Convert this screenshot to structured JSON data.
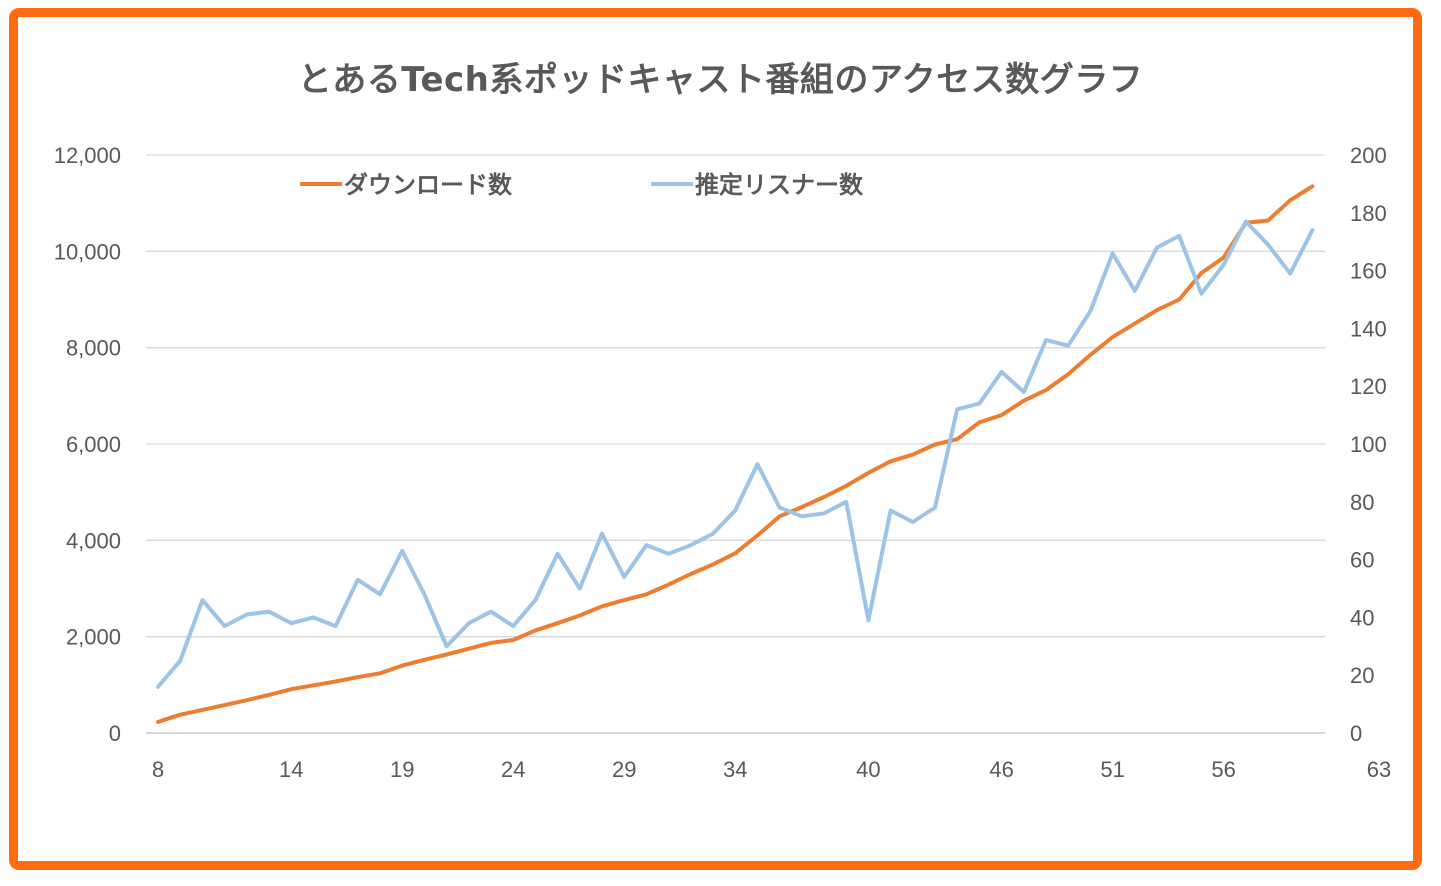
{
  "chart_data": {
    "type": "line",
    "title": "とあるTech系ポッドキャスト番組のアクセス数グラフ",
    "x_tick_labels": [
      "8",
      "14",
      "19",
      "24",
      "29",
      "34",
      "40",
      "46",
      "51",
      "56",
      "63"
    ],
    "x_start": 8,
    "y_left": {
      "ticks": [
        "0",
        "2,000",
        "4,000",
        "6,000",
        "8,000",
        "10,000",
        "12,000"
      ],
      "ylim": [
        0,
        12000
      ]
    },
    "y_right": {
      "ticks": [
        "0",
        "20",
        "40",
        "60",
        "80",
        "100",
        "120",
        "140",
        "160",
        "180",
        "200"
      ],
      "ylim": [
        0,
        200
      ]
    },
    "grid": true,
    "legend_position": "top-left",
    "series": [
      {
        "name": "ダウンロード数",
        "axis": "left",
        "color": "#ed7d31",
        "values": [
          230,
          380,
          480,
          580,
          680,
          790,
          910,
          990,
          1070,
          1160,
          1240,
          1400,
          1520,
          1630,
          1750,
          1870,
          1930,
          2130,
          2280,
          2440,
          2630,
          2760,
          2880,
          3080,
          3300,
          3500,
          3730,
          4100,
          4500,
          4690,
          4900,
          5130,
          5400,
          5640,
          5780,
          5990,
          6100,
          6450,
          6600,
          6900,
          7120,
          7450,
          7850,
          8220,
          8500,
          8780,
          9000,
          9550,
          9870,
          10590,
          10640,
          11060,
          11350
        ]
      },
      {
        "name": "推定リスナー数",
        "axis": "right",
        "color": "#9dc3e6",
        "values": [
          16,
          25,
          46,
          37,
          41,
          42,
          38,
          40,
          37,
          53,
          48,
          63,
          48,
          30,
          38,
          42,
          37,
          46,
          62,
          50,
          69,
          54,
          65,
          62,
          65,
          69,
          77,
          93,
          78,
          75,
          76,
          80,
          39,
          77,
          73,
          78,
          112,
          114,
          125,
          118,
          136,
          134,
          146,
          166,
          153,
          168,
          172,
          152,
          162,
          177,
          169,
          159,
          174
        ]
      }
    ]
  }
}
